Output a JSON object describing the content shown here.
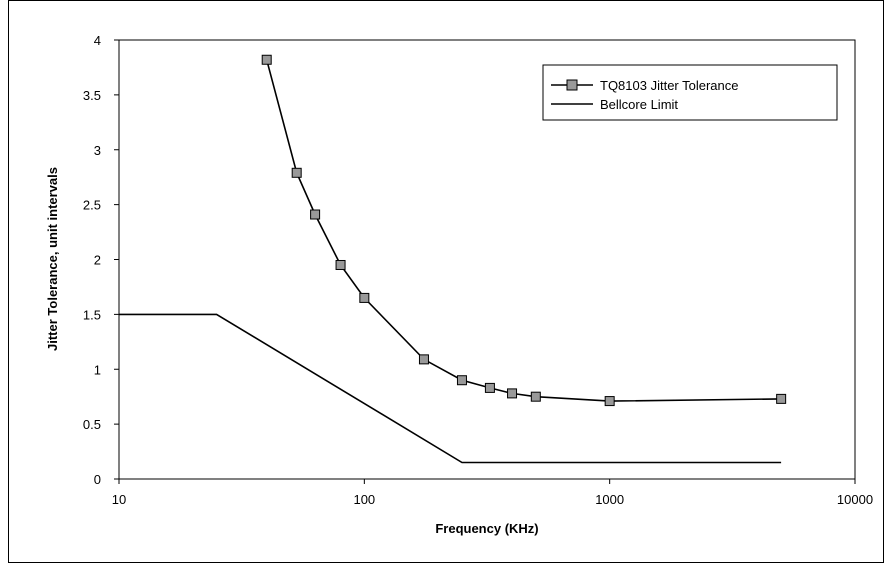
{
  "chart_data": {
    "type": "line",
    "xscale": "log",
    "xlabel": "Frequency (KHz)",
    "ylabel": "Jitter Tolerance, unit intervals",
    "xlim": [
      10,
      10000
    ],
    "ylim": [
      0,
      4
    ],
    "xticks": [
      "10",
      "100",
      "1000",
      "10000"
    ],
    "yticks": [
      "0",
      "0.5",
      "1",
      "1.5",
      "2",
      "2.5",
      "3",
      "3.5",
      "4"
    ],
    "grid": false,
    "legend_position": "top-right",
    "series": [
      {
        "name": "TQ8103 Jitter Tolerance",
        "color": "#000000",
        "marker": "square",
        "marker_color": "#999999",
        "x": [
          40,
          53,
          63,
          80,
          100,
          175,
          250,
          325,
          400,
          500,
          1000,
          5000
        ],
        "y": [
          3.82,
          2.79,
          2.41,
          1.95,
          1.65,
          1.09,
          0.9,
          0.83,
          0.78,
          0.75,
          0.71,
          0.73
        ]
      },
      {
        "name": "Bellcore Limit",
        "color": "#000000",
        "marker": "none",
        "x": [
          10,
          25,
          250,
          5000
        ],
        "y": [
          1.5,
          1.5,
          0.15,
          0.15
        ]
      }
    ]
  }
}
